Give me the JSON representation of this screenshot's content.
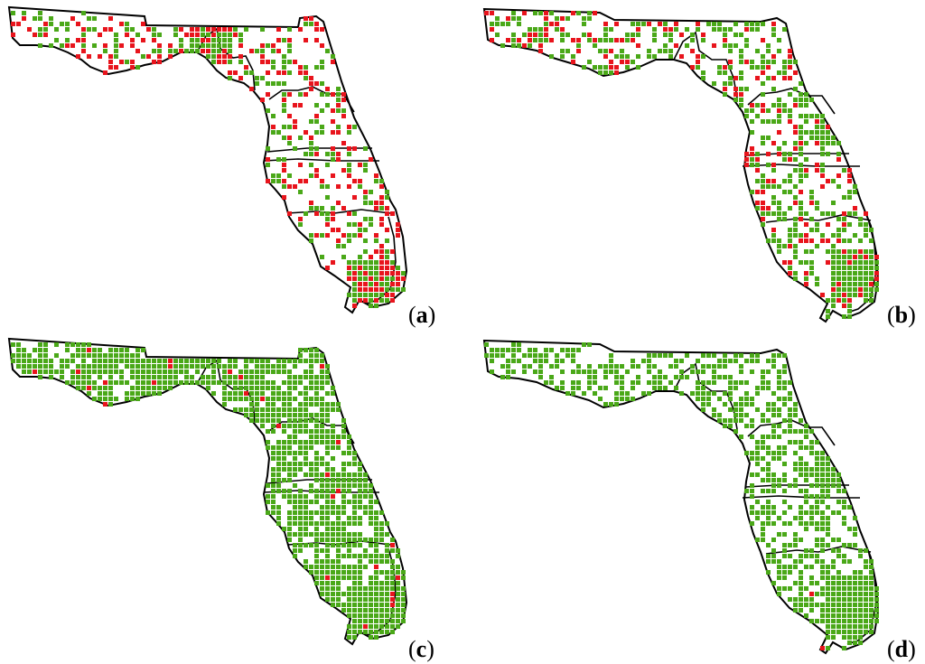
{
  "colors": {
    "red": "#e8141c",
    "green": "#4aa818",
    "outline": "#000000"
  },
  "panels": [
    {
      "id": "a",
      "label_open": "(",
      "label_letter": "a",
      "label_close": ")"
    },
    {
      "id": "b",
      "label_open": "(",
      "label_letter": "b",
      "label_close": ")"
    },
    {
      "id": "c",
      "label_open": "(",
      "label_letter": "c",
      "label_close": ")"
    },
    {
      "id": "d",
      "label_open": "(",
      "label_letter": "d",
      "label_close": ")"
    }
  ]
}
